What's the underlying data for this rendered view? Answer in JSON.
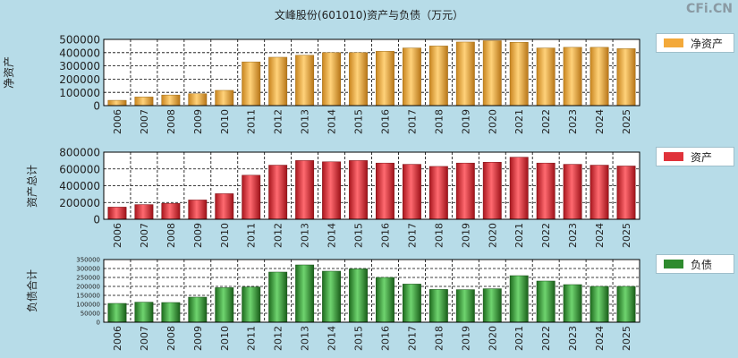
{
  "title": "文峰股份(601010)资产与负债（万元）",
  "watermark": "CFi.CN",
  "chart_data": [
    {
      "type": "bar",
      "ylabel": "净资产",
      "legend": "净资产",
      "color": "#f3a93a",
      "ylim": [
        0,
        500000
      ],
      "yticks": [
        "0",
        "100000",
        "200000",
        "300000",
        "400000",
        "500000"
      ],
      "categories": [
        "2006",
        "2007",
        "2008",
        "2009",
        "2010",
        "2011",
        "2012",
        "2013",
        "2014",
        "2015",
        "2016",
        "2017",
        "2018",
        "2019",
        "2020",
        "2021",
        "2022",
        "2023",
        "2024",
        "2025"
      ],
      "values": [
        40000,
        65000,
        80000,
        90000,
        115000,
        330000,
        365000,
        380000,
        400000,
        400000,
        410000,
        435000,
        450000,
        480000,
        490000,
        478000,
        435000,
        440000,
        440000,
        430000
      ]
    },
    {
      "type": "bar",
      "ylabel": "资产总计",
      "legend": "资产",
      "color": "#e0323a",
      "ylim": [
        0,
        800000
      ],
      "yticks": [
        "0",
        "200000",
        "400000",
        "600000",
        "800000"
      ],
      "categories": [
        "2006",
        "2007",
        "2008",
        "2009",
        "2010",
        "2011",
        "2012",
        "2013",
        "2014",
        "2015",
        "2016",
        "2017",
        "2018",
        "2019",
        "2020",
        "2021",
        "2022",
        "2023",
        "2024",
        "2025"
      ],
      "values": [
        145000,
        175000,
        190000,
        230000,
        305000,
        525000,
        645000,
        700000,
        685000,
        700000,
        670000,
        655000,
        630000,
        670000,
        680000,
        740000,
        670000,
        655000,
        645000,
        635000
      ]
    },
    {
      "type": "bar",
      "ylabel": "负债合计",
      "legend": "负债",
      "color": "#2e8b2e",
      "ylim": [
        0,
        350000
      ],
      "yticks": [
        "0",
        "50000",
        "100000",
        "150000",
        "200000",
        "250000",
        "300000",
        "350000"
      ],
      "categories": [
        "2006",
        "2007",
        "2008",
        "2009",
        "2010",
        "2011",
        "2012",
        "2013",
        "2014",
        "2015",
        "2016",
        "2017",
        "2018",
        "2019",
        "2020",
        "2021",
        "2022",
        "2023",
        "2024",
        "2025"
      ],
      "values": [
        105000,
        112000,
        110000,
        140000,
        193000,
        197000,
        280000,
        320000,
        285000,
        298000,
        250000,
        213000,
        183000,
        182000,
        187000,
        260000,
        230000,
        210000,
        200000,
        200000
      ]
    }
  ]
}
